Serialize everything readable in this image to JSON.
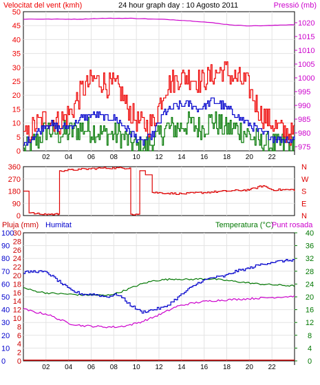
{
  "colors": {
    "gust": "#ee0000",
    "wind": "#0000cc",
    "wind_low": "#007700",
    "pressure": "#cc00cc",
    "direction": "#dd0000",
    "rain": "#cc0000",
    "humidity": "#0000cc",
    "temperature": "#007700",
    "dewpoint": "#cc00cc"
  },
  "chart_data": [
    {
      "type": "line",
      "title": "24 hour graph day : 10 Agosto 2011",
      "ylabel": "Velocitat del vent (kmh)",
      "y2label": "Pressió (mb)",
      "ylim": [
        0,
        50
      ],
      "y2lim": [
        973.5,
        1024
      ],
      "yticks": [
        "0",
        "5",
        "10",
        "15",
        "20",
        "25",
        "30",
        "35",
        "40",
        "45",
        "50"
      ],
      "y2ticks": [
        "975",
        "980",
        "985",
        "990",
        "995",
        "1000",
        "1005",
        "1010",
        "1015",
        "1020"
      ],
      "x_labels": [
        "02",
        "04",
        "06",
        "08",
        "10",
        "12",
        "14",
        "16",
        "18",
        "20",
        "22"
      ],
      "series": [
        {
          "key": "gust",
          "values": [
            4,
            9,
            12,
            10,
            14,
            22,
            26,
            24,
            23,
            14,
            9,
            10,
            23,
            26,
            27,
            25,
            27,
            29,
            26,
            24,
            14,
            10,
            7,
            6
          ]
        },
        {
          "key": "wind",
          "values": [
            2,
            6,
            10,
            8,
            9,
            12,
            13,
            12,
            11,
            7,
            3,
            6,
            14,
            16,
            17,
            15,
            18,
            16,
            13,
            10,
            7,
            5,
            4,
            4
          ]
        },
        {
          "key": "wind_low",
          "values": [
            0,
            3,
            8,
            6,
            7,
            8,
            7,
            6,
            6,
            3,
            1,
            3,
            8,
            8,
            10,
            8,
            11,
            8,
            8,
            6,
            3,
            2,
            2,
            3
          ]
        },
        {
          "key": "pressure",
          "axis": "right",
          "values": [
            1021.3,
            1021.3,
            1021.3,
            1021.3,
            1021.3,
            1021.3,
            1021.5,
            1021.6,
            1021.6,
            1021.6,
            1021.5,
            1021.3,
            1021.2,
            1021,
            1020.7,
            1020.4,
            1020,
            1019.5,
            1019.1,
            1018.9,
            1018.9,
            1019,
            1019.2,
            1019.3
          ]
        }
      ]
    },
    {
      "type": "line",
      "ylim": [
        0,
        360
      ],
      "yticks": [
        "0",
        "90",
        "180",
        "270",
        "360"
      ],
      "compass": [
        "N",
        "W",
        "S",
        "E",
        "N"
      ],
      "series": [
        {
          "key": "direction",
          "points": [
            [
              0,
              180
            ],
            [
              0.3,
              180
            ],
            [
              0.5,
              20
            ],
            [
              1.4,
              10
            ],
            [
              3.1,
              10
            ],
            [
              3.2,
              330
            ],
            [
              5,
              340
            ],
            [
              7,
              350
            ],
            [
              9.4,
              350
            ],
            [
              9.5,
              10
            ],
            [
              10.2,
              10
            ],
            [
              10.3,
              330
            ],
            [
              10.8,
              300
            ],
            [
              11.4,
              170
            ],
            [
              14,
              160
            ],
            [
              16,
              170
            ],
            [
              18,
              180
            ],
            [
              20,
              190
            ],
            [
              21.2,
              220
            ],
            [
              22,
              190
            ],
            [
              24,
              190
            ]
          ]
        }
      ]
    },
    {
      "type": "line",
      "ylabel": "Pluja (mm)",
      "y2label": "Humitat",
      "y3label": "Temperatura (°C)",
      "y4label": "Punt rosada",
      "ylim": [
        0,
        100
      ],
      "y2lim": [
        0,
        40
      ],
      "rain_ticks": [
        "0",
        "2",
        "4",
        "6",
        "8",
        "10",
        "12",
        "14",
        "16",
        "18",
        "20",
        "22",
        "24",
        "26",
        "28",
        "30"
      ],
      "hum_ticks": [
        "0",
        "10",
        "20",
        "30",
        "40",
        "50",
        "60",
        "70",
        "80",
        "90",
        "100"
      ],
      "temp_ticks": [
        "0",
        "4",
        "8",
        "12",
        "16",
        "20",
        "24",
        "28",
        "32",
        "36",
        "40"
      ],
      "x_labels": [
        "02",
        "04",
        "06",
        "08",
        "10",
        "12",
        "14",
        "16",
        "18",
        "20",
        "22"
      ],
      "series": [
        {
          "key": "rain",
          "values": [
            0,
            0,
            0,
            0,
            0,
            0,
            0,
            0,
            0,
            0,
            0,
            0,
            0,
            0,
            0,
            0,
            0,
            0,
            0,
            0,
            0,
            0,
            0,
            0
          ]
        },
        {
          "key": "humidity",
          "values": [
            69,
            70,
            69,
            62,
            55,
            52,
            52,
            50,
            52,
            44,
            38,
            40,
            42,
            49,
            56,
            62,
            65,
            66,
            70,
            72,
            75,
            77,
            78,
            79
          ]
        },
        {
          "key": "temperature",
          "axis": "right",
          "values": [
            22.8,
            21.8,
            21.2,
            21,
            20.8,
            20.6,
            20.6,
            20.4,
            21.2,
            22.6,
            24,
            25,
            25.4,
            25.6,
            25.4,
            25.6,
            25.6,
            25.2,
            24.8,
            24.4,
            24,
            23.8,
            23.6,
            23.4
          ]
        },
        {
          "key": "dewpoint",
          "axis": "right",
          "values": [
            16.2,
            15.2,
            14.6,
            13,
            11.6,
            11,
            10.8,
            10.6,
            10.6,
            11.2,
            12.2,
            13.6,
            15.2,
            17,
            17.8,
            18.4,
            18.8,
            19,
            19.2,
            19.4,
            19.6,
            19.8,
            20,
            20.2
          ]
        }
      ]
    }
  ]
}
